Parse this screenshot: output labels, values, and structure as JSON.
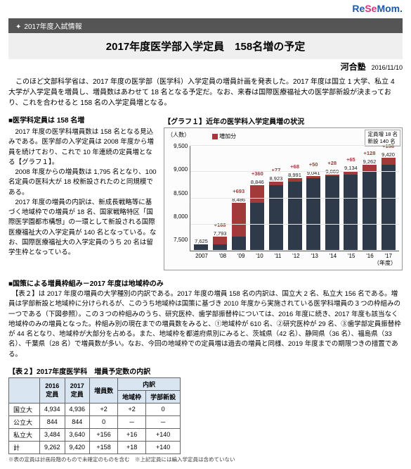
{
  "logo": {
    "re": "Re",
    "se": "Se",
    "mom": "Mom."
  },
  "banner": "2017年度入試情報",
  "title": "2017年度医学部入学定員　158名増の予定",
  "source": "河合塾",
  "date": "2016/11/10",
  "intro": "　このほど文部科学省は、2017 年度の医学部（医学科）入学定員の増員計画を発表した。2017 年度は国立 1 大学、私立 4 大学が入学定員を増員し、増員数はあわせて 18 名となる予定だ。なお、来春は国際医療福祉大の医学部新設が決まっており、これを合わせると 158 名の入学定員増となる。",
  "sec1_hdr": "■医学科定員は 158 名増",
  "sec1_body": "　2017 年度の医学科増員数は 158 名となる見込みである。医学部の入学定員は 2008 年度から増員を続けており、これで 10 年連続の定員増となる【グラフ１】。\n　2008 年度からの増員数は 1,795 名となり、100 名定員の医科大が 18 校新設されたのと同規模である。\n　2017 年度の増員の内訳は、新成長戦略等に基づく地域枠での増員が 18 名、国家戦略特区「国際医学園都市構想」の一環として新設される国際医療福祉大の入学定員が 140 名となっている。なお、国際医療福祉大の入学定員のうち 20 名は留学生枠となっている。",
  "chart": {
    "title": "【グラフ１】近年の医学科入学定員増の状況",
    "unit": "（人数）",
    "legend_inline": "増加分",
    "legend_box_line1": "定員増 18 名",
    "legend_box_line2": "新設 140 名",
    "colors": {
      "base": "#2e3a4a",
      "inc": "#a23a3a",
      "delta_text": "#a23a3a",
      "grid": "#e6e6e6"
    },
    "ymin": 7500,
    "ymax": 9500,
    "ystep": 500,
    "yticks": [
      "9,500",
      "9,000",
      "8,500",
      "8,000",
      "7,500"
    ],
    "years": [
      "2007",
      "'08",
      "'09",
      "'10",
      "'11",
      "'12",
      "'13",
      "'14",
      "'15",
      "'16",
      "'17"
    ],
    "xlabel_suffix": "（年度）",
    "totals_raw": [
      7625,
      7793,
      8486,
      8846,
      8923,
      8991,
      9041,
      9069,
      9134,
      9262,
      9420
    ],
    "totals_lbl": [
      "7,625",
      "7,793",
      "8,486",
      "8,846",
      "8,923",
      "8,991",
      "9,041",
      "9,069",
      "9,134",
      "9,262",
      "9,420"
    ],
    "deltas_raw": [
      0,
      168,
      693,
      360,
      77,
      68,
      50,
      28,
      65,
      128,
      158
    ],
    "deltas_lbl": [
      "",
      "+168",
      "+693",
      "+360",
      "+77",
      "+68",
      "+50",
      "+28",
      "+65",
      "+128",
      "+158"
    ]
  },
  "sec2_hdr": "■国策による増員枠組み－2017 年度は地域枠のみ",
  "sec2_body": "　【表２】は 2017 年度の増員の大学種別の内訳である。2017 年度の増員 158 名の内訳は、国立大 2 名、私立大 156 名である。増員は学部新設と地域枠に分けられるが、このうち地域枠は国策に基づき 2010 年度から実施されている医学科増員の３つの枠組みの一つである（下図参照）。この３つの枠組みのうち、研究医枠、歯学部振替枠については、2016 年度に続き、2017 年度も該当なく地域枠のみの増員となった。枠組み別の現在までの増員数をみると、①地域枠が 610 名、②研究医枠が 29 名、③歯学部定員振替枠が 44 名となり、地域枠が大部分を占める。また、地域枠を都道府県別にみると、茨城県（42 名）、静岡県（36 名）、福島県（33 名）、千葉県（28 名）で増員数が多い。なお、今回の地域枠での定員増は過去の増員と同様、2019 年度までの期限つきの措置である。",
  "table": {
    "title": "【表２】2017年度医学科　増員予定数の内訳",
    "head_r1": [
      "",
      "2016\n定員",
      "2017\n定員",
      "増員数",
      "内訳"
    ],
    "head_r2": [
      "地域枠",
      "学部新設"
    ],
    "rows": [
      {
        "label": "国立大",
        "c2016": "4,934",
        "c2017": "4,936",
        "inc": "+2",
        "region": "+2",
        "newdept": "0"
      },
      {
        "label": "公立大",
        "c2016": "844",
        "c2017": "844",
        "inc": "0",
        "region": "－",
        "newdept": "－"
      },
      {
        "label": "私立大",
        "c2016": "3,484",
        "c2017": "3,640",
        "inc": "+156",
        "region": "+16",
        "newdept": "+140"
      },
      {
        "label": "計",
        "c2016": "9,262",
        "c2017": "9,420",
        "inc": "+158",
        "region": "+18",
        "newdept": "+140"
      }
    ],
    "note": "※表の定員は計画段階のもので未確定のものを含む　※上記定員には編入学定員は含めていない"
  }
}
